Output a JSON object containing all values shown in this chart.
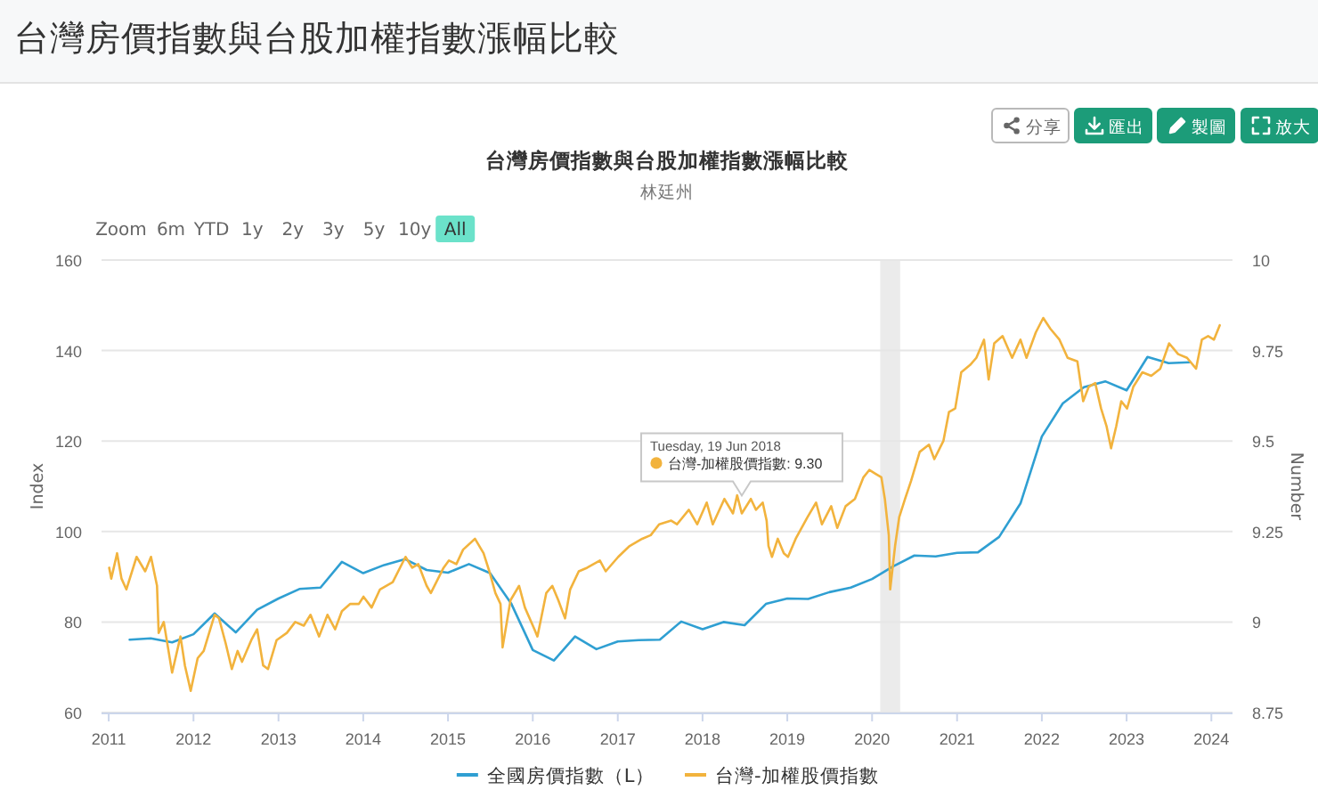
{
  "chart_data": {
    "type": "line",
    "title": "台灣房價指數與台股加權指數漲幅比較",
    "subtitle": "台灣房價指數與台股加權指數漲幅比較",
    "ylabel": "Index",
    "y2label": "Number",
    "xlim": [
      "2010-12-01",
      "2024-04-01"
    ],
    "xticks": [
      "2011",
      "2012",
      "2013",
      "2014",
      "2015",
      "2016",
      "2017",
      "2018",
      "2019",
      "2020",
      "2021",
      "2022",
      "2023",
      "2024"
    ],
    "ylim": [
      60,
      160
    ],
    "yticks": [
      60,
      80,
      100,
      120,
      140,
      160
    ],
    "y2lim": [
      8.75,
      10
    ],
    "y2ticks": [
      8.75,
      9,
      9.25,
      9.5,
      9.75,
      10
    ],
    "grid": "y",
    "legend": "bottom",
    "bands": [
      {
        "axis": "x",
        "from": "2020-02-05",
        "to": "2020-05-01",
        "color": "#ebebeb"
      }
    ],
    "annotations": [
      "林廷州",
      "分享",
      "匯出",
      "製圖",
      "放大",
      "Zoom",
      "6m",
      "YTD",
      "1y",
      "2y",
      "3y",
      "5y",
      "10y",
      "All",
      {
        "text": "Tuesday, 19 Jun 2018\n台灣-加權股價指數: 9.30",
        "x": "2018-06-19",
        "y": 104
      }
    ],
    "series": [
      {
        "name": "全國房價指數（L）",
        "color": "#2f9fd2",
        "x": [
          "2011-04",
          "2011-07",
          "2011-10",
          "2012-01",
          "2012-04",
          "2012-07",
          "2012-10",
          "2013-01",
          "2013-04",
          "2013-07",
          "2013-10",
          "2014-01",
          "2014-04",
          "2014-07",
          "2014-10",
          "2015-01",
          "2015-04",
          "2015-07",
          "2015-10",
          "2016-01",
          "2016-04",
          "2016-07",
          "2016-10",
          "2017-01",
          "2017-04",
          "2017-07",
          "2017-10",
          "2018-01",
          "2018-04",
          "2018-07",
          "2018-10",
          "2019-01",
          "2019-04",
          "2019-07",
          "2019-10",
          "2020-01",
          "2020-04",
          "2020-07",
          "2020-10",
          "2021-01",
          "2021-04",
          "2021-07",
          "2021-10",
          "2022-01",
          "2022-04",
          "2022-07",
          "2022-10",
          "2023-01",
          "2023-04",
          "2023-07",
          "2023-10"
        ],
        "values": [
          76.1,
          76.4,
          75.5,
          77.3,
          81.9,
          77.7,
          82.7,
          85.2,
          87.3,
          87.6,
          93.3,
          90.8,
          92.6,
          93.9,
          91.5,
          90.9,
          92.8,
          90.8,
          84.0,
          73.8,
          71.5,
          76.8,
          74.0,
          75.7,
          76.0,
          76.1,
          80.1,
          78.4,
          80.0,
          79.3,
          84.0,
          85.2,
          85.1,
          86.6,
          87.6,
          89.5,
          92.3,
          94.7,
          94.5,
          95.3,
          95.4,
          98.8,
          106.2,
          121.0,
          128.3,
          131.9,
          133.2,
          131.2,
          138.6,
          137.2,
          137.4
        ]
      },
      {
        "name": "台灣-加權股價指數",
        "color": "#f2b33d",
        "axis": "y2",
        "x": [
          "2011-01-03",
          "2011-01-12",
          "2011-02-06",
          "2011-02-25",
          "2011-03-18",
          "2011-05-01",
          "2011-06-07",
          "2011-07-02",
          "2011-07-28",
          "2011-08-04",
          "2011-08-26",
          "2011-10-01",
          "2011-11-06",
          "2011-11-25",
          "2011-12-20",
          "2012-01-19",
          "2012-02-14",
          "2012-04-01",
          "2012-04-20",
          "2012-05-19",
          "2012-06-14",
          "2012-07-09",
          "2012-07-28",
          "2012-09-06",
          "2012-10-01",
          "2012-10-27",
          "2012-11-17",
          "2012-12-24",
          "2013-02-06",
          "2013-03-14",
          "2013-04-20",
          "2013-05-19",
          "2013-06-25",
          "2013-07-31",
          "2013-09-02",
          "2013-10-01",
          "2013-11-06",
          "2013-12-13",
          "2014-01-02",
          "2014-02-06",
          "2014-03-14",
          "2014-05-08",
          "2014-07-02",
          "2014-07-31",
          "2014-08-26",
          "2014-10-01",
          "2014-10-19",
          "2014-12-13",
          "2015-01-05",
          "2015-02-06",
          "2015-03-07",
          "2015-04-27",
          "2015-06-03",
          "2015-06-28",
          "2015-07-24",
          "2015-08-15",
          "2015-08-24",
          "2015-09-27",
          "2015-11-03",
          "2015-11-28",
          "2016-01-08",
          "2016-01-21",
          "2016-02-28",
          "2016-03-25",
          "2016-04-20",
          "2016-05-19",
          "2016-06-10",
          "2016-07-17",
          "2016-08-22",
          "2016-10-16",
          "2016-11-10",
          "2017-01-03",
          "2017-02-21",
          "2017-04-16",
          "2017-05-23",
          "2017-06-28",
          "2017-08-19",
          "2017-09-13",
          "2017-11-03",
          "2017-12-09",
          "2018-01-19",
          "2018-02-14",
          "2018-04-05",
          "2018-05-12",
          "2018-05-30",
          "2018-06-19",
          "2018-07-28",
          "2018-08-19",
          "2018-09-17",
          "2018-10-04",
          "2018-10-12",
          "2018-10-27",
          "2018-11-21",
          "2018-12-17",
          "2019-01-04",
          "2019-02-06",
          "2019-03-29",
          "2019-05-05",
          "2019-05-30",
          "2019-07-09",
          "2019-08-04",
          "2019-09-09",
          "2019-10-19",
          "2019-11-25",
          "2019-12-20",
          "2020-01-15",
          "2020-02-10",
          "2020-02-25",
          "2020-03-13",
          "2020-03-19",
          "2020-04-09",
          "2020-04-27",
          "2020-05-22",
          "2020-06-17",
          "2020-07-24",
          "2020-09-02",
          "2020-09-25",
          "2020-11-03",
          "2020-11-27",
          "2020-12-24",
          "2021-01-19",
          "2021-02-26",
          "2021-03-25",
          "2021-04-27",
          "2021-05-17",
          "2021-06-10",
          "2021-07-16",
          "2021-08-26",
          "2021-10-01",
          "2021-10-27",
          "2021-12-06",
          "2022-01-07",
          "2022-02-07",
          "2022-03-18",
          "2022-04-22",
          "2022-06-03",
          "2022-06-28",
          "2022-07-22",
          "2022-08-19",
          "2022-09-13",
          "2022-10-07",
          "2022-10-26",
          "2022-11-17",
          "2022-12-09",
          "2023-01-03",
          "2023-01-30",
          "2023-03-10",
          "2023-04-17",
          "2023-05-26",
          "2023-07-03",
          "2023-08-11",
          "2023-09-18",
          "2023-10-27",
          "2023-11-21",
          "2023-12-18",
          "2024-01-12",
          "2024-02-06"
        ],
        "values": [
          9.15,
          9.12,
          9.19,
          9.12,
          9.09,
          9.18,
          9.14,
          9.18,
          9.1,
          8.97,
          9.0,
          8.86,
          8.96,
          8.88,
          8.81,
          8.9,
          8.92,
          9.02,
          9.01,
          8.94,
          8.87,
          8.92,
          8.89,
          8.95,
          8.98,
          8.88,
          8.87,
          8.95,
          8.97,
          9.0,
          8.99,
          9.02,
          8.96,
          9.02,
          8.98,
          9.03,
          9.05,
          9.05,
          9.07,
          9.04,
          9.09,
          9.11,
          9.18,
          9.15,
          9.16,
          9.1,
          9.08,
          9.15,
          9.17,
          9.16,
          9.2,
          9.23,
          9.19,
          9.14,
          9.08,
          9.05,
          8.93,
          9.06,
          9.1,
          9.04,
          8.98,
          8.96,
          9.08,
          9.1,
          9.06,
          9.01,
          9.09,
          9.14,
          9.15,
          9.17,
          9.14,
          9.18,
          9.21,
          9.23,
          9.24,
          9.27,
          9.28,
          9.27,
          9.31,
          9.27,
          9.33,
          9.27,
          9.34,
          9.3,
          9.35,
          9.3,
          9.34,
          9.31,
          9.33,
          9.28,
          9.21,
          9.18,
          9.23,
          9.19,
          9.18,
          9.23,
          9.29,
          9.33,
          9.27,
          9.32,
          9.26,
          9.32,
          9.34,
          9.4,
          9.42,
          9.41,
          9.4,
          9.34,
          9.24,
          9.09,
          9.21,
          9.29,
          9.34,
          9.39,
          9.47,
          9.49,
          9.45,
          9.5,
          9.58,
          9.59,
          9.69,
          9.71,
          9.73,
          9.78,
          9.67,
          9.77,
          9.79,
          9.73,
          9.78,
          9.73,
          9.8,
          9.84,
          9.81,
          9.78,
          9.73,
          9.72,
          9.61,
          9.65,
          9.66,
          9.59,
          9.54,
          9.48,
          9.54,
          9.61,
          9.59,
          9.65,
          9.69,
          9.68,
          9.7,
          9.77,
          9.74,
          9.73,
          9.7,
          9.78,
          9.79,
          9.78,
          9.82
        ]
      }
    ]
  }
}
